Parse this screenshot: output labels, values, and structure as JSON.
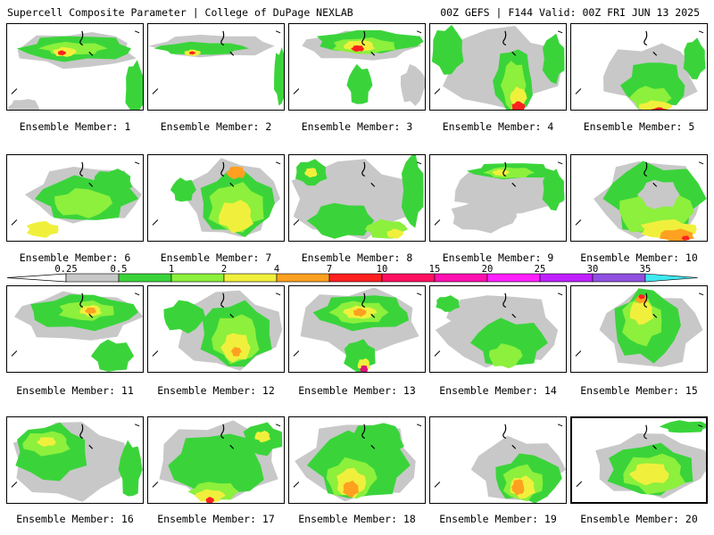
{
  "header": {
    "title_left": "Supercell Composite Parameter | College of DuPage NEXLAB",
    "title_right": "00Z GEFS | F144 Valid: 00Z FRI JUN 13 2025"
  },
  "member_label_prefix": "Ensemble Member: ",
  "members": [
    {
      "number": "1",
      "caption": "Ensemble Member: 1"
    },
    {
      "number": "2",
      "caption": "Ensemble Member: 2"
    },
    {
      "number": "3",
      "caption": "Ensemble Member: 3"
    },
    {
      "number": "4",
      "caption": "Ensemble Member: 4"
    },
    {
      "number": "5",
      "caption": "Ensemble Member: 5"
    },
    {
      "number": "6",
      "caption": "Ensemble Member: 6"
    },
    {
      "number": "7",
      "caption": "Ensemble Member: 7"
    },
    {
      "number": "8",
      "caption": "Ensemble Member: 8"
    },
    {
      "number": "9",
      "caption": "Ensemble Member: 9"
    },
    {
      "number": "10",
      "caption": "Ensemble Member: 10"
    },
    {
      "number": "11",
      "caption": "Ensemble Member: 11"
    },
    {
      "number": "12",
      "caption": "Ensemble Member: 12"
    },
    {
      "number": "13",
      "caption": "Ensemble Member: 13"
    },
    {
      "number": "14",
      "caption": "Ensemble Member: 14"
    },
    {
      "number": "15",
      "caption": "Ensemble Member: 15"
    },
    {
      "number": "16",
      "caption": "Ensemble Member: 16"
    },
    {
      "number": "17",
      "caption": "Ensemble Member: 17"
    },
    {
      "number": "18",
      "caption": "Ensemble Member: 18"
    },
    {
      "number": "19",
      "caption": "Ensemble Member: 19"
    },
    {
      "number": "20",
      "caption": "Ensemble Member: 20"
    }
  ],
  "selected_member": "20",
  "colorbar": {
    "ticks": [
      "0.25",
      "0.5",
      "1",
      "2",
      "4",
      "7",
      "10",
      "15",
      "20",
      "25",
      "30",
      "35"
    ],
    "colors": [
      "#c8c8c8",
      "#3ad43a",
      "#8cf03c",
      "#f0f03c",
      "#ffa020",
      "#ff2020",
      "#ff1060",
      "#ff10b0",
      "#ff20ff",
      "#c020ff",
      "#9050e0",
      "#40e8f0"
    ]
  },
  "field_colors": {
    "low": "#c8c8c8",
    "green": "#3ad43a",
    "lightgreen": "#8cf03c",
    "yellow": "#f0f03c",
    "orange": "#ffa020",
    "red": "#ff2020",
    "magenta": "#e0107a"
  }
}
